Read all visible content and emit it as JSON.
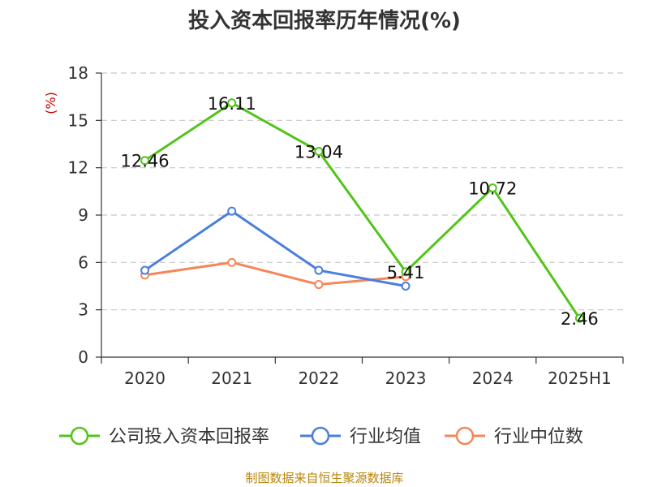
{
  "chart_data": {
    "type": "line",
    "title": "投入资本回报率历年情况(%)",
    "ylabel": "(%)",
    "categories": [
      "2020",
      "2021",
      "2022",
      "2023",
      "2024",
      "2025H1"
    ],
    "ylim": [
      0,
      18
    ],
    "yticks": [
      0,
      3,
      6,
      9,
      12,
      15,
      18
    ],
    "grid": true,
    "legend_position": "bottom",
    "series": [
      {
        "name": "公司投入资本回报率",
        "color": "#52c41a",
        "values": [
          12.46,
          16.11,
          13.04,
          5.41,
          10.72,
          2.46
        ],
        "labels": [
          "12.46",
          "16.11",
          "13.04",
          "5.41",
          "10.72",
          "2.46"
        ],
        "show_labels": true
      },
      {
        "name": "行业均值",
        "color": "#4a7fdc",
        "values": [
          5.5,
          9.25,
          5.5,
          4.5,
          null,
          null
        ],
        "show_labels": false
      },
      {
        "name": "行业中位数",
        "color": "#f4875a",
        "values": [
          5.2,
          6.0,
          4.6,
          5.1,
          null,
          null
        ],
        "show_labels": false
      }
    ]
  },
  "source_text": "制图数据来自恒生聚源数据库"
}
